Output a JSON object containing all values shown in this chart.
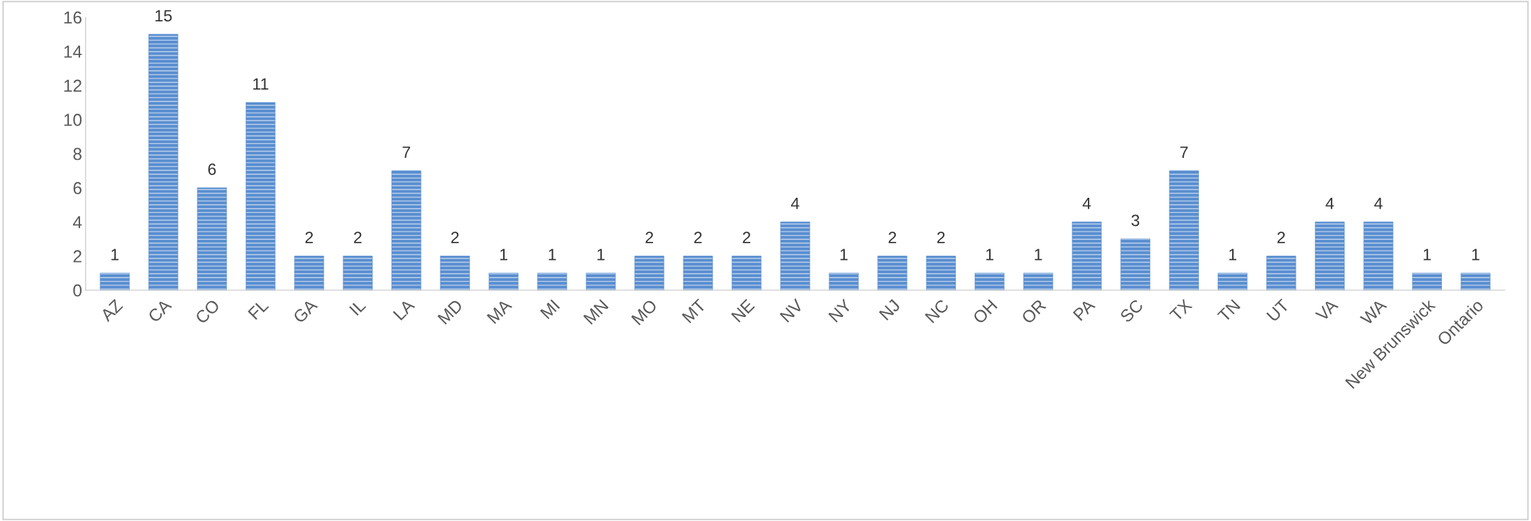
{
  "chart_data": {
    "type": "bar",
    "categories": [
      "AZ",
      "CA",
      "CO",
      "FL",
      "GA",
      "IL",
      "LA",
      "MD",
      "MA",
      "MI",
      "MN",
      "MO",
      "MT",
      "NE",
      "NV",
      "NY",
      "NJ",
      "NC",
      "OH",
      "OR",
      "PA",
      "SC",
      "TX",
      "TN",
      "UT",
      "VA",
      "WA",
      "New Brunswick",
      "Ontario"
    ],
    "values": [
      1,
      15,
      6,
      11,
      2,
      2,
      7,
      2,
      1,
      1,
      1,
      2,
      2,
      2,
      4,
      1,
      2,
      2,
      1,
      1,
      4,
      3,
      7,
      1,
      2,
      4,
      4,
      1,
      1
    ],
    "color": "#5a8ed0",
    "ylim": [
      0,
      16
    ],
    "yticks": [
      0,
      2,
      4,
      6,
      8,
      10,
      12,
      14,
      16
    ],
    "grid": false,
    "legend": false,
    "data_labels": true
  }
}
